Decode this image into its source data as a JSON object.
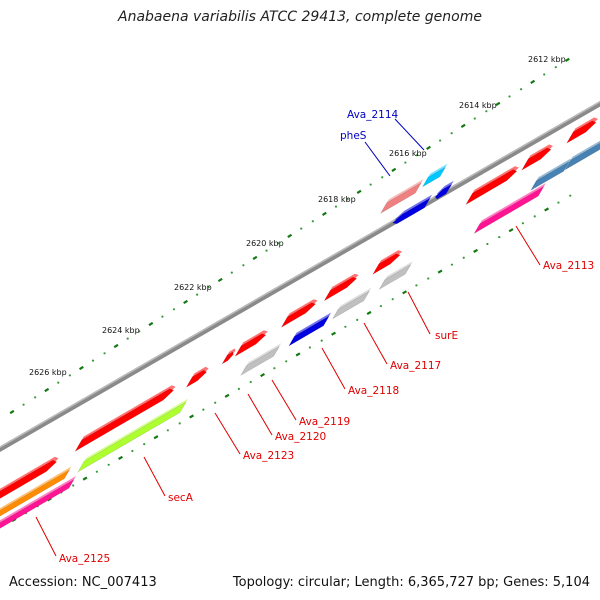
{
  "title": "Anabaena variabilis ATCC 29413, complete genome",
  "accession": "Accession: NC_007413",
  "stats": "Topology: circular; Length: 6,365,727 bp; Genes: 5,104",
  "colors": {
    "backbone": "#808080",
    "tick_dot": "#3a9a3a",
    "tick_major": "#137a13",
    "label_fwd": "#e00000",
    "label_rev": "#0000c0"
  },
  "ticks": [
    {
      "label": "2612 kbp"
    },
    {
      "label": "2614 kbp"
    },
    {
      "label": "2616 kbp"
    },
    {
      "label": "2618 kbp"
    },
    {
      "label": "2620 kbp"
    },
    {
      "label": "2622 kbp"
    },
    {
      "label": "2624 kbp"
    },
    {
      "label": "2626 kbp"
    }
  ],
  "gene_labels": [
    {
      "text": "Ava_2114",
      "strand": "reverse"
    },
    {
      "text": "pheS",
      "strand": "reverse"
    },
    {
      "text": "Ava_2113",
      "strand": "forward"
    },
    {
      "text": "surE",
      "strand": "forward"
    },
    {
      "text": "Ava_2117",
      "strand": "forward"
    },
    {
      "text": "Ava_2118",
      "strand": "forward"
    },
    {
      "text": "Ava_2119",
      "strand": "forward"
    },
    {
      "text": "Ava_2120",
      "strand": "forward"
    },
    {
      "text": "Ava_2123",
      "strand": "forward"
    },
    {
      "text": "secA",
      "strand": "forward"
    },
    {
      "text": "Ava_2125",
      "strand": "forward"
    }
  ],
  "feature_colors": {
    "cds_forward": "#ff0000",
    "cds_reverse": "#0000e0",
    "cds_light_red": "#f08080",
    "cds_cyan": "#00c8ff",
    "cds_steelblue": "#4682b4",
    "gene_grey": "#c0c0c0",
    "gene_pink": "#ff1493",
    "gene_orange": "#ff8c00",
    "gene_green": "#adff2f"
  }
}
